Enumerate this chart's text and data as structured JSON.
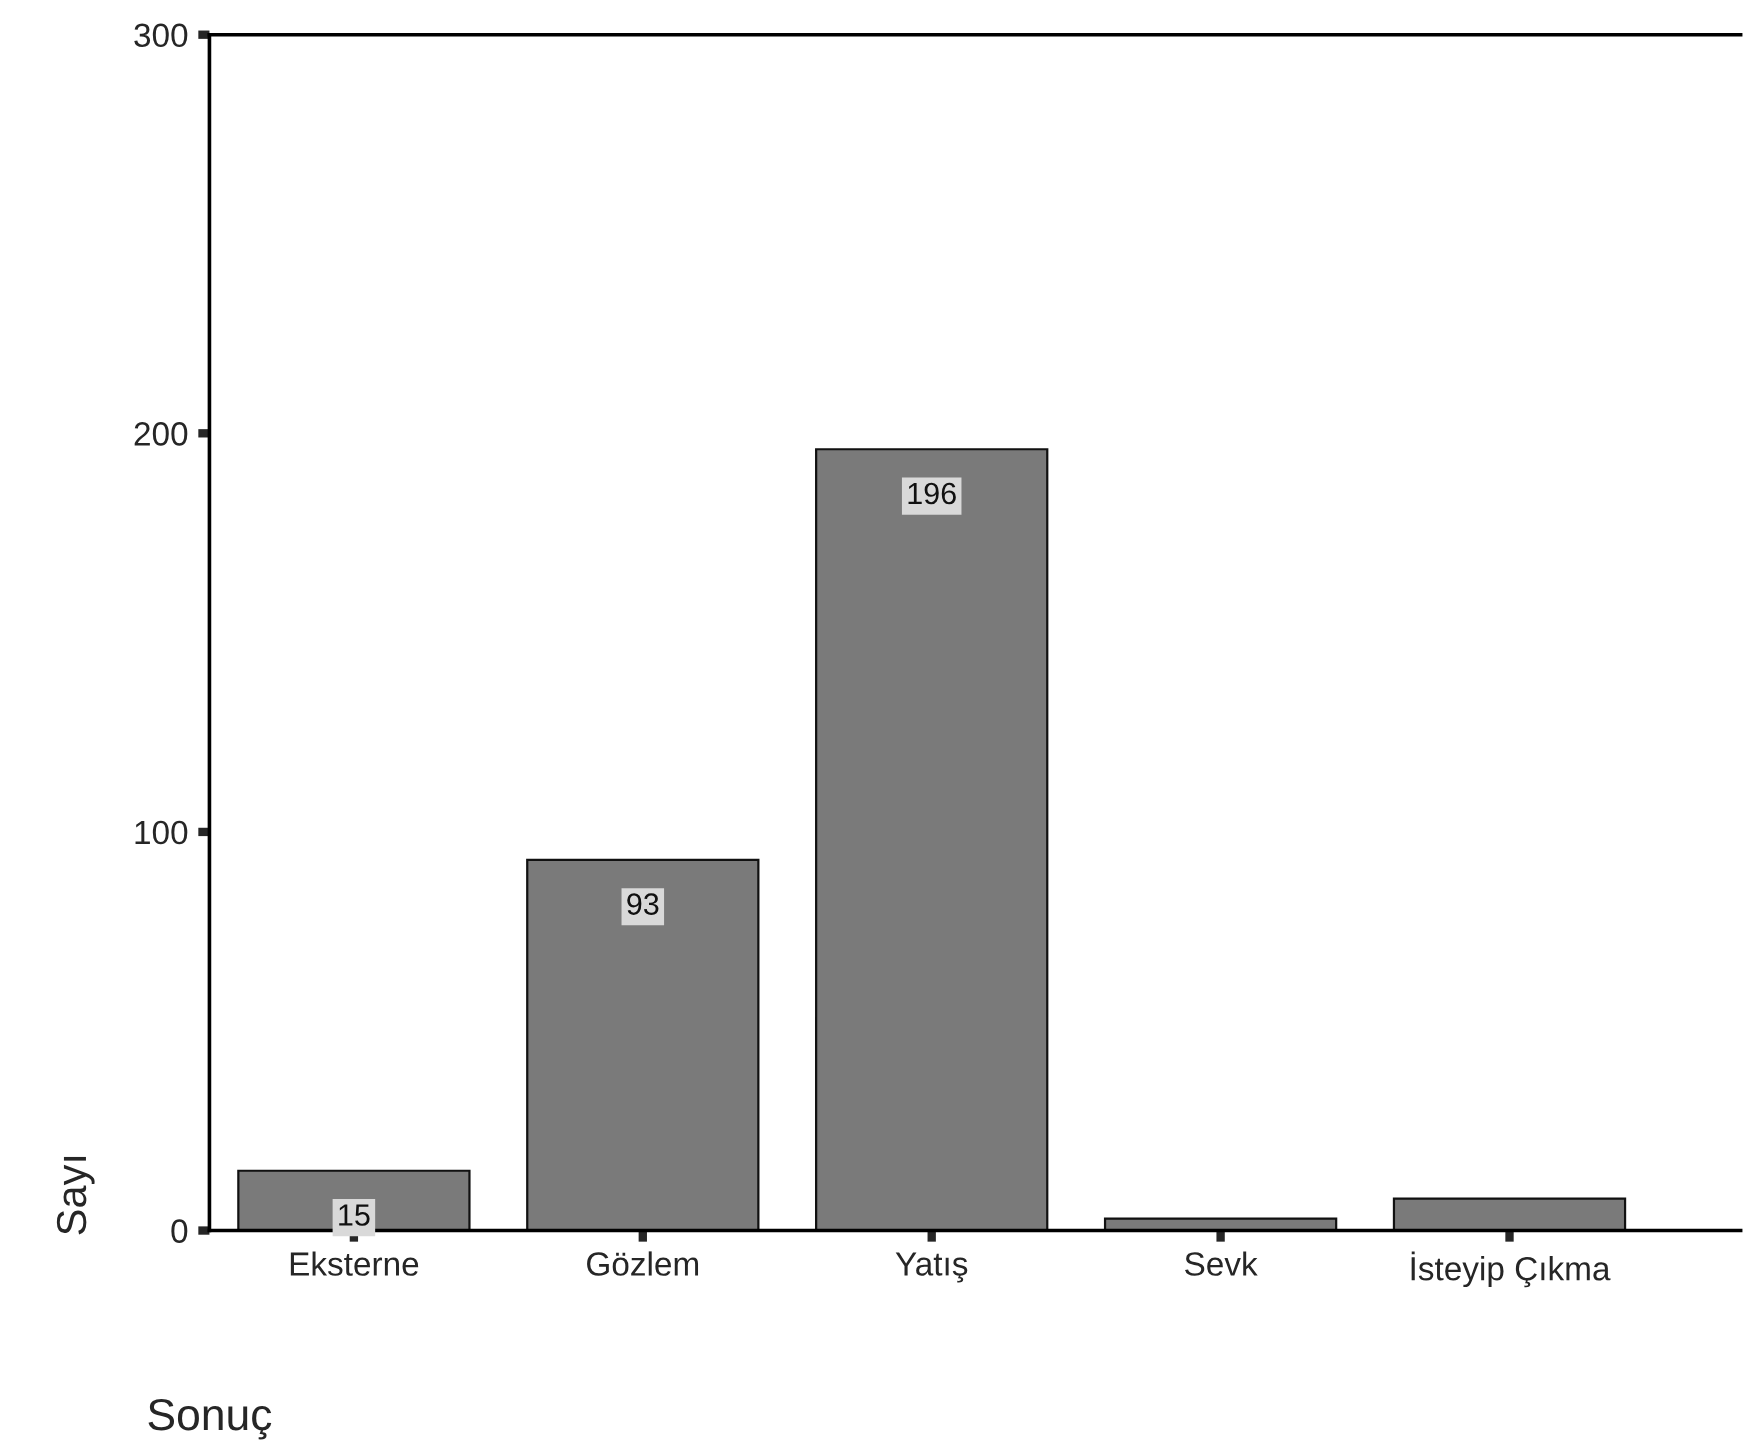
{
  "chart_data": {
    "type": "bar",
    "categories": [
      "Eksterne",
      "Gözlem",
      "Yatış",
      "Sevk",
      "İsteyip Çıkma"
    ],
    "values": [
      15,
      93,
      196,
      3,
      8
    ],
    "value_labels": [
      "15",
      "93",
      "196",
      null,
      null
    ],
    "color": "#7a7a7a",
    "xlabel": "Sonuç",
    "ylabel": "Sayı",
    "ylim": [
      0,
      300
    ],
    "yticks": [
      0,
      100,
      200,
      300
    ],
    "grid": false
  }
}
